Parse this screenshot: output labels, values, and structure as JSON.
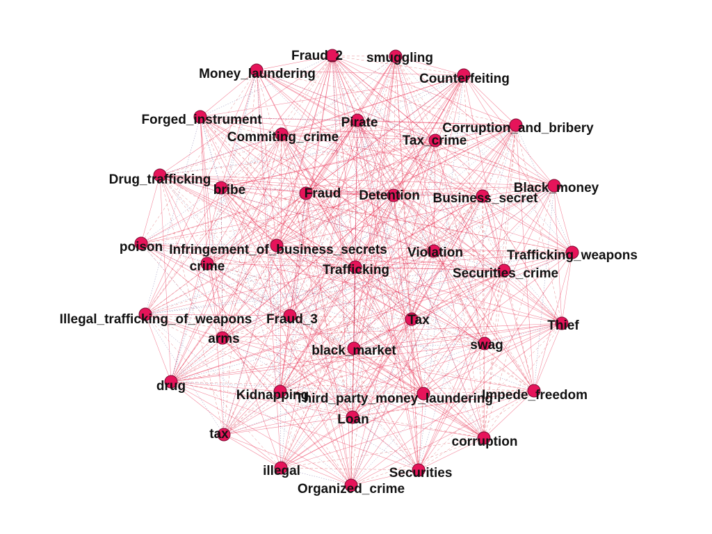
{
  "graph": {
    "node_color": "#e6145a",
    "edge_colors": [
      "#e8143c",
      "#d0202a",
      "#3a2a7a"
    ],
    "nodes": [
      "Fraud_2",
      "smuggling",
      "Money_laundering",
      "Counterfeiting",
      "Forged_instrument",
      "Pirate",
      "Commiting_crime",
      "Corruption_and_bribery",
      "Tax_crime",
      "Drug_trafficking",
      "bribe",
      "Black_money",
      "Fraud",
      "Detention",
      "Business_secret",
      "poison",
      "Infringement_of_business_secrets",
      "Violation",
      "Trafficking_weapons",
      "crime",
      "Trafficking",
      "Securities_crime",
      "Illegal_trafficking_of_weapons",
      "Fraud_3",
      "Tax",
      "Thief",
      "arms",
      "swag",
      "black_market",
      "drug",
      "Kidnapping",
      "Third_party_money_laundering",
      "Impede_freedom",
      "Loan",
      "tax",
      "corruption",
      "illegal",
      "Securities",
      "Organized_crime"
    ]
  }
}
